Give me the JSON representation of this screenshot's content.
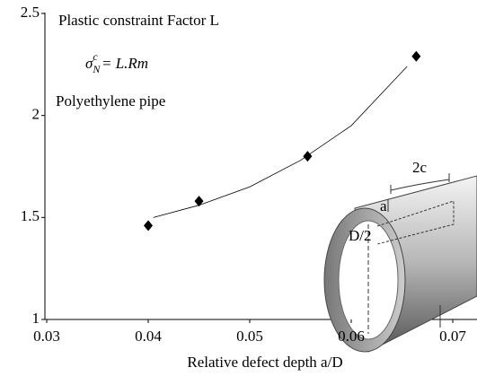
{
  "chart_data": {
    "type": "scatter",
    "annotations": [
      "Plastic constraint Factor L",
      "Polyethylene pipe"
    ],
    "formula": {
      "symbol": "σ",
      "sub": "N",
      "sup": "c",
      "rest": " = L.Rm"
    },
    "x_label": "Relative defect depth a/D",
    "x": [
      0.04,
      0.045,
      0.0557,
      0.0664
    ],
    "values": [
      1.46,
      1.58,
      1.8,
      2.29
    ],
    "color": "#000000",
    "fit": {
      "x": [
        0.0405,
        0.045,
        0.05,
        0.055,
        0.06,
        0.0655
      ],
      "values": [
        1.5,
        1.56,
        1.65,
        1.78,
        1.95,
        2.24
      ]
    },
    "xlim": [
      0.03,
      0.07
    ],
    "xticks": [
      0.03,
      0.04,
      0.05,
      0.06,
      0.07
    ],
    "ylim": [
      1,
      2.5
    ],
    "yticks": [
      1,
      1.5,
      2,
      2.5
    ],
    "illustration_labels": [
      "2c",
      "a",
      "D/2"
    ]
  }
}
